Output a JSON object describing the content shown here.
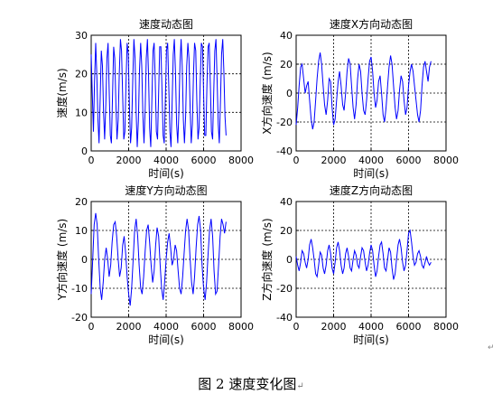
{
  "caption": "图 2  速度变化图",
  "caption_mark": "↵",
  "corner_mark": "↵",
  "chart_data": [
    {
      "type": "line",
      "title": "速度动态图",
      "xlabel": "时间(s)",
      "ylabel": "速度(m/s)",
      "xlim": [
        0,
        8000
      ],
      "ylim": [
        0,
        30
      ],
      "xticks": [
        0,
        2000,
        4000,
        6000,
        8000
      ],
      "yticks": [
        0,
        10,
        20,
        30
      ],
      "grid": true,
      "color": "#0000ff",
      "series": [
        {
          "x": [
            0,
            60,
            120,
            180,
            240,
            300,
            360,
            420,
            480,
            540,
            600,
            660,
            720,
            780,
            840,
            900,
            960,
            1020,
            1080,
            1140,
            1200,
            1260,
            1320,
            1380,
            1440,
            1500,
            1560,
            1620,
            1680,
            1740,
            1800,
            1860,
            1920,
            1980,
            2040,
            2100,
            2160,
            2220,
            2280,
            2340,
            2400,
            2460,
            2520,
            2580,
            2640,
            2700,
            2760,
            2820,
            2880,
            2940,
            3000,
            3060,
            3120,
            3180,
            3240,
            3300,
            3360,
            3420,
            3480,
            3540,
            3600,
            3660,
            3720,
            3780,
            3840,
            3900,
            3960,
            4020,
            4080,
            4140,
            4200,
            4260,
            4320,
            4380,
            4440,
            4500,
            4560,
            4620,
            4680,
            4740,
            4800,
            4860,
            4920,
            4980,
            5040,
            5100,
            5160,
            5220,
            5280,
            5340,
            5400,
            5460,
            5520,
            5580,
            5640,
            5700,
            5760,
            5820,
            5880,
            5940,
            6000,
            6060,
            6120,
            6180,
            6240,
            6300,
            6360,
            6420,
            6480,
            6540,
            6600,
            6660,
            6720,
            6780,
            6840,
            6900,
            6960,
            7020,
            7080,
            7140,
            7200
          ],
          "y": [
            25,
            15,
            5,
            18,
            28,
            20,
            8,
            2,
            14,
            26,
            22,
            10,
            3,
            12,
            24,
            28,
            16,
            4,
            2,
            15,
            27,
            24,
            12,
            3,
            8,
            20,
            29,
            26,
            14,
            3,
            5,
            18,
            28,
            25,
            12,
            2,
            6,
            19,
            29,
            24,
            10,
            1,
            8,
            21,
            28,
            22,
            9,
            2,
            11,
            24,
            29,
            20,
            6,
            1,
            13,
            26,
            28,
            18,
            5,
            3,
            15,
            27,
            27,
            16,
            4,
            2,
            14,
            26,
            28,
            17,
            5,
            1,
            12,
            25,
            29,
            20,
            7,
            2,
            10,
            23,
            29,
            22,
            8,
            2,
            9,
            22,
            28,
            24,
            11,
            2,
            7,
            20,
            28,
            26,
            13,
            3,
            6,
            18,
            28,
            27,
            15,
            4,
            4,
            17,
            27,
            28,
            17,
            5,
            3,
            15,
            26,
            29,
            19,
            7,
            2,
            13,
            25,
            29,
            21,
            9,
            4
          ]
        }
      ]
    },
    {
      "type": "line",
      "title": "速度X方向动态图",
      "xlabel": "时间(s)",
      "ylabel": "X方向速度 (m/s)",
      "xlim": [
        0,
        8000
      ],
      "ylim": [
        -40,
        40
      ],
      "xticks": [
        0,
        2000,
        4000,
        6000,
        8000
      ],
      "yticks": [
        -40,
        -20,
        0,
        20,
        40
      ],
      "grid": true,
      "color": "#0000ff",
      "series": [
        {
          "x": [
            0,
            80,
            160,
            240,
            320,
            400,
            480,
            560,
            640,
            720,
            800,
            880,
            960,
            1040,
            1120,
            1200,
            1280,
            1360,
            1440,
            1520,
            1600,
            1680,
            1760,
            1840,
            1920,
            2000,
            2080,
            2160,
            2240,
            2320,
            2400,
            2480,
            2560,
            2640,
            2720,
            2800,
            2880,
            2960,
            3040,
            3120,
            3200,
            3280,
            3360,
            3440,
            3520,
            3600,
            3680,
            3760,
            3840,
            3920,
            4000,
            4080,
            4160,
            4240,
            4320,
            4400,
            4480,
            4560,
            4640,
            4720,
            4800,
            4880,
            4960,
            5040,
            5120,
            5200,
            5280,
            5360,
            5440,
            5520,
            5600,
            5680,
            5760,
            5840,
            5920,
            6000,
            6080,
            6160,
            6240,
            6320,
            6400,
            6480,
            6560,
            6640,
            6720,
            6800,
            6880,
            6960,
            7040,
            7120,
            7200
          ],
          "y": [
            -22,
            -10,
            5,
            18,
            20,
            10,
            0,
            5,
            8,
            -5,
            -18,
            -25,
            -20,
            -5,
            10,
            22,
            28,
            20,
            5,
            -8,
            -15,
            -5,
            10,
            8,
            -10,
            -22,
            -18,
            -5,
            8,
            15,
            5,
            -8,
            -12,
            0,
            15,
            24,
            20,
            5,
            -10,
            -18,
            -8,
            10,
            20,
            15,
            0,
            -12,
            -15,
            -5,
            10,
            22,
            25,
            15,
            0,
            -10,
            -5,
            8,
            12,
            0,
            -15,
            -20,
            -10,
            5,
            18,
            26,
            20,
            5,
            -10,
            -18,
            -12,
            2,
            12,
            8,
            -5,
            -15,
            -10,
            5,
            15,
            20,
            15,
            5,
            -5,
            -15,
            -20,
            -12,
            5,
            18,
            22,
            15,
            8,
            18,
            22
          ]
        }
      ]
    },
    {
      "type": "line",
      "title": "速度Y方向动态图",
      "xlabel": "时间(s)",
      "ylabel": "Y方向速度 (m/s)",
      "xlim": [
        0,
        8000
      ],
      "ylim": [
        -20,
        20
      ],
      "xticks": [
        0,
        2000,
        4000,
        6000,
        8000
      ],
      "yticks": [
        -20,
        -10,
        0,
        10,
        20
      ],
      "grid": true,
      "color": "#0000ff",
      "series": [
        {
          "x": [
            0,
            80,
            160,
            240,
            320,
            400,
            480,
            560,
            640,
            720,
            800,
            880,
            960,
            1040,
            1120,
            1200,
            1280,
            1360,
            1440,
            1520,
            1600,
            1680,
            1760,
            1840,
            1920,
            2000,
            2080,
            2160,
            2240,
            2320,
            2400,
            2480,
            2560,
            2640,
            2720,
            2800,
            2880,
            2960,
            3040,
            3120,
            3200,
            3280,
            3360,
            3440,
            3520,
            3600,
            3680,
            3760,
            3840,
            3920,
            4000,
            4080,
            4160,
            4240,
            4320,
            4400,
            4480,
            4560,
            4640,
            4720,
            4800,
            4880,
            4960,
            5040,
            5120,
            5200,
            5280,
            5360,
            5440,
            5520,
            5600,
            5680,
            5760,
            5840,
            5920,
            6000,
            6080,
            6160,
            6240,
            6320,
            6400,
            6480,
            6560,
            6640,
            6720,
            6800,
            6880,
            6960,
            7040,
            7120,
            7200
          ],
          "y": [
            -12,
            0,
            12,
            16,
            12,
            0,
            -10,
            -14,
            -8,
            0,
            4,
            0,
            -6,
            -2,
            6,
            12,
            13,
            8,
            0,
            -6,
            -3,
            5,
            8,
            2,
            -6,
            -12,
            -16,
            -10,
            0,
            10,
            14,
            8,
            -2,
            -10,
            -12,
            -6,
            3,
            10,
            12,
            6,
            -2,
            -8,
            -4,
            5,
            11,
            8,
            -2,
            -10,
            -14,
            -8,
            0,
            6,
            9,
            4,
            -2,
            0,
            5,
            3,
            -4,
            -10,
            -12,
            -6,
            2,
            10,
            14,
            10,
            0,
            -8,
            -12,
            -6,
            4,
            12,
            15,
            10,
            -2,
            -10,
            -14,
            -8,
            2,
            10,
            14,
            8,
            -4,
            -12,
            -11,
            -2,
            8,
            14,
            12,
            9,
            13
          ]
        }
      ]
    },
    {
      "type": "line",
      "title": "速度Z方向动态图",
      "xlabel": "时间(s)",
      "ylabel": "Z方向速度 (m/s)",
      "xlim": [
        0,
        8000
      ],
      "ylim": [
        -40,
        40
      ],
      "xticks": [
        0,
        2000,
        4000,
        6000,
        8000
      ],
      "yticks": [
        -40,
        -20,
        0,
        20,
        40
      ],
      "grid": true,
      "color": "#0000ff",
      "series": [
        {
          "x": [
            0,
            80,
            160,
            240,
            320,
            400,
            480,
            560,
            640,
            720,
            800,
            880,
            960,
            1040,
            1120,
            1200,
            1280,
            1360,
            1440,
            1520,
            1600,
            1680,
            1760,
            1840,
            1920,
            2000,
            2080,
            2160,
            2240,
            2320,
            2400,
            2480,
            2560,
            2640,
            2720,
            2800,
            2880,
            2960,
            3040,
            3120,
            3200,
            3280,
            3360,
            3440,
            3520,
            3600,
            3680,
            3760,
            3840,
            3920,
            4000,
            4080,
            4160,
            4240,
            4320,
            4400,
            4480,
            4560,
            4640,
            4720,
            4800,
            4880,
            4960,
            5040,
            5120,
            5200,
            5280,
            5360,
            5440,
            5520,
            5600,
            5680,
            5760,
            5840,
            5920,
            6000,
            6080,
            6160,
            6240,
            6320,
            6400,
            6480,
            6560,
            6640,
            6720,
            6800,
            6880,
            6960,
            7040,
            7120,
            7200
          ],
          "y": [
            2,
            -4,
            -8,
            -2,
            6,
            4,
            -2,
            -6,
            0,
            10,
            14,
            8,
            0,
            -10,
            -12,
            -4,
            5,
            3,
            -6,
            -10,
            -4,
            6,
            10,
            4,
            -6,
            -10,
            -2,
            8,
            12,
            6,
            -4,
            -10,
            -6,
            4,
            8,
            2,
            -6,
            -8,
            0,
            6,
            3,
            -4,
            -6,
            2,
            8,
            6,
            -2,
            -8,
            -4,
            4,
            10,
            6,
            -4,
            -12,
            -8,
            2,
            10,
            12,
            4,
            -6,
            -8,
            0,
            8,
            5,
            -6,
            -14,
            -10,
            0,
            10,
            14,
            8,
            -2,
            -8,
            -4,
            6,
            18,
            20,
            12,
            2,
            -4,
            -2,
            4,
            6,
            2,
            -4,
            -6,
            -2,
            2,
            -2,
            -4,
            -2
          ]
        }
      ]
    }
  ]
}
